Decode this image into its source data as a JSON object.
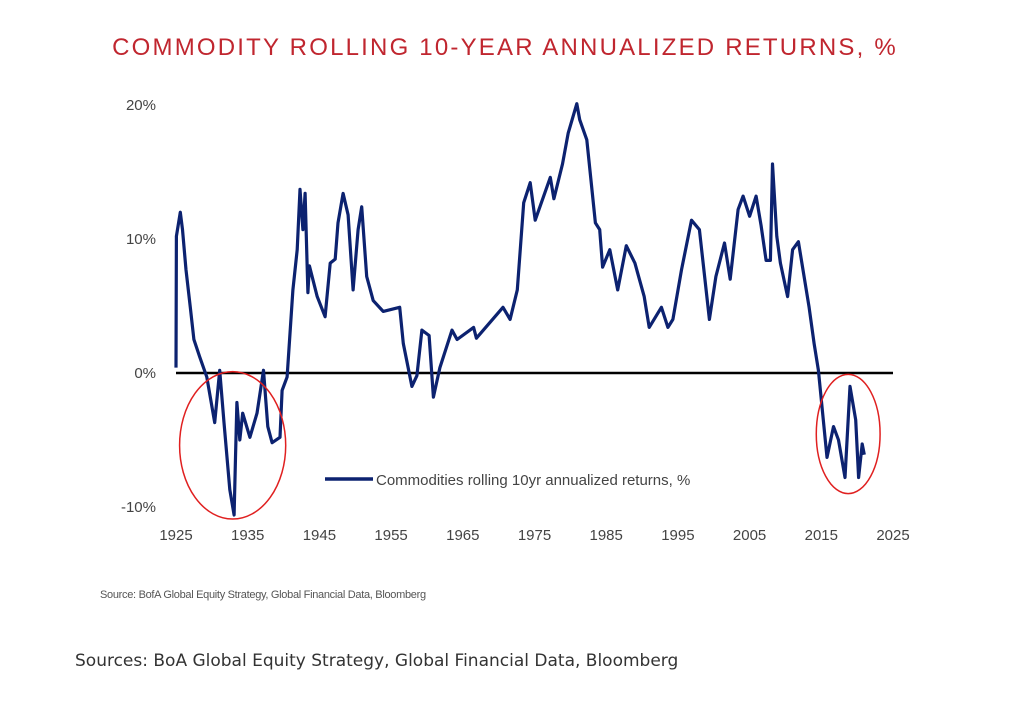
{
  "chart_data": {
    "type": "line",
    "title": "COMMODITY ROLLING 10-YEAR ANNUALIZED RETURNS, %",
    "xlabel": "",
    "ylabel": "",
    "xlim": [
      1925,
      2025
    ],
    "ylim": [
      -10,
      20
    ],
    "x_ticks": [
      "1925",
      "1935",
      "1945",
      "1955",
      "1965",
      "1975",
      "1985",
      "1995",
      "2005",
      "2015",
      "2025"
    ],
    "y_ticks": [
      "20%",
      "10%",
      "0%",
      "-10%"
    ],
    "grid": false,
    "reference_line": {
      "y": 0,
      "color": "#000000"
    },
    "legend": {
      "placement": "bottom-center",
      "entries": [
        "Commodities rolling 10yr annualized returns, %"
      ]
    },
    "series": [
      {
        "name": "Commodities rolling 10yr annualized returns, %",
        "color": "#0c2270",
        "x": [
          1925.0,
          1925.05,
          1925.6,
          1925.9,
          1926.4,
          1927.0,
          1927.5,
          1928.3,
          1929.3,
          1930.4,
          1931.1,
          1931.7,
          1932.5,
          1933.1,
          1933.3,
          1933.5,
          1933.9,
          1934.3,
          1935.3,
          1936.3,
          1937.2,
          1937.8,
          1938.4,
          1939.5,
          1939.8,
          1940.5,
          1941.3,
          1941.9,
          1942.3,
          1942.7,
          1943.0,
          1943.4,
          1943.6,
          1944.7,
          1945.8,
          1946.5,
          1947.2,
          1947.6,
          1948.3,
          1949.0,
          1949.7,
          1950.4,
          1950.9,
          1951.6,
          1952.5,
          1953.9,
          1956.2,
          1956.7,
          1957.9,
          1958.6,
          1959.3,
          1960.3,
          1960.9,
          1961.8,
          1963.5,
          1964.2,
          1966.5,
          1966.9,
          1970.6,
          1971.6,
          1972.6,
          1973.5,
          1974.4,
          1975.1,
          1977.2,
          1977.7,
          1978.9,
          1979.7,
          1980.9,
          1981.3,
          1982.3,
          1983.5,
          1984.1,
          1984.5,
          1985.5,
          1986.6,
          1987.8,
          1989.0,
          1990.3,
          1991.0,
          1992.7,
          1993.6,
          1994.3,
          1995.5,
          1996.9,
          1998.0,
          1999.4,
          2000.3,
          2001.5,
          2002.3,
          2003.4,
          2004.1,
          2005.0,
          2005.9,
          2006.6,
          2007.3,
          2007.9,
          2008.2,
          2008.8,
          2009.3,
          2010.3,
          2011.0,
          2011.8,
          2013.3,
          2014.0,
          2014.6,
          2015.8,
          2016.7,
          2017.4,
          2018.3,
          2019.0,
          2019.8,
          2020.2,
          2020.7,
          2021.0
        ],
        "values": [
          0.4,
          10.2,
          12.0,
          10.7,
          7.7,
          4.9,
          2.5,
          1.2,
          -0.3,
          -3.7,
          0.2,
          -3.7,
          -8.7,
          -10.6,
          -6.3,
          -2.2,
          -5.0,
          -3.0,
          -4.8,
          -3.0,
          0.2,
          -4.0,
          -5.2,
          -4.8,
          -1.3,
          -0.3,
          6.2,
          9.2,
          13.7,
          10.7,
          13.4,
          6.0,
          8.0,
          5.7,
          4.2,
          8.2,
          8.5,
          11.2,
          13.4,
          11.8,
          6.2,
          10.7,
          12.4,
          7.2,
          5.4,
          4.6,
          4.9,
          2.2,
          -1.0,
          -0.2,
          3.2,
          2.8,
          -1.8,
          0.4,
          3.2,
          2.5,
          3.4,
          2.6,
          4.9,
          4.0,
          6.2,
          12.7,
          14.2,
          11.4,
          14.6,
          13.0,
          15.6,
          17.9,
          20.1,
          18.9,
          17.4,
          11.2,
          10.7,
          7.9,
          9.2,
          6.2,
          9.5,
          8.2,
          5.7,
          3.4,
          4.9,
          3.4,
          4.0,
          7.7,
          11.4,
          10.7,
          4.0,
          7.2,
          9.7,
          7.0,
          12.2,
          13.2,
          11.7,
          13.2,
          11.0,
          8.4,
          8.4,
          15.6,
          10.2,
          8.2,
          5.7,
          9.2,
          9.8,
          4.9,
          2.2,
          0.2,
          -6.3,
          -4.0,
          -5.0,
          -7.8,
          -1.0,
          -3.5,
          -7.8,
          -5.3,
          -6.1
        ]
      }
    ],
    "annotations": [
      {
        "type": "ellipse",
        "color": "#e02020",
        "x_range": [
          1925.5,
          1940.3
        ],
        "y_range": [
          -10.9,
          0.1
        ]
      },
      {
        "type": "ellipse",
        "color": "#e02020",
        "x_range": [
          2014.3,
          2023.2
        ],
        "y_range": [
          -9.0,
          -0.1
        ]
      }
    ],
    "source_note": "Source:  BofA Global Equity Strategy, Global Financial Data, Bloomberg"
  },
  "caption": "Sources: BoA Global Equity Strategy, Global Financial Data, Bloomberg"
}
